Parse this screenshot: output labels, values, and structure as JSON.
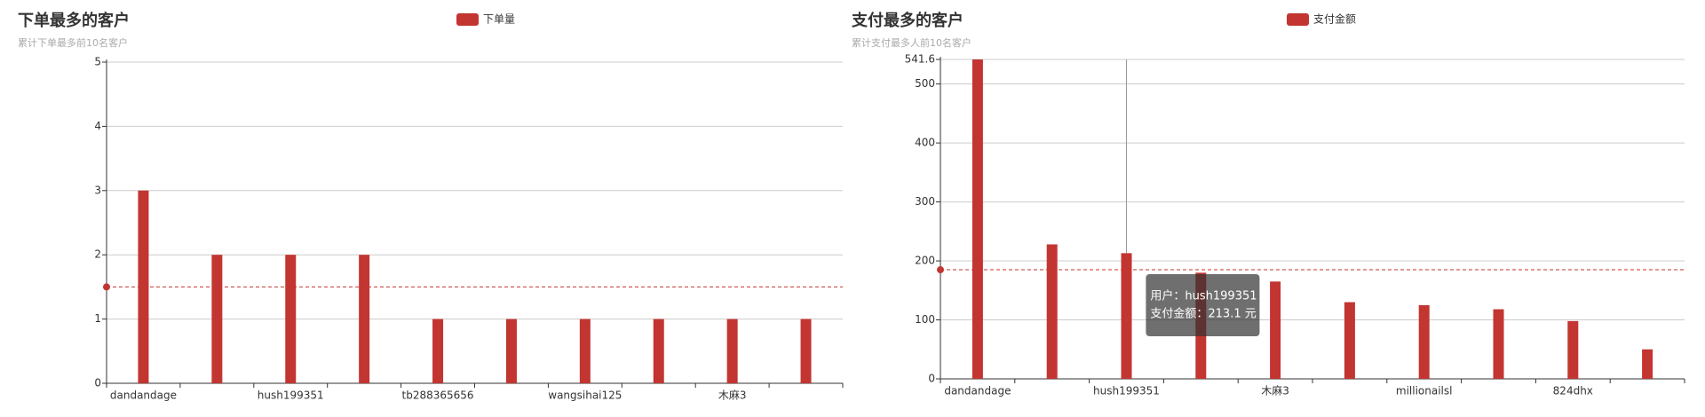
{
  "chart_data": [
    {
      "type": "bar",
      "title": "下单最多的客户",
      "subtitle": "累计下单最多前10名客户",
      "categories": [
        "dandandage",
        null,
        "hush199351",
        null,
        "tb288365656",
        null,
        "wangsihai125",
        null,
        "木麻3",
        null
      ],
      "series": [
        {
          "name": "下单量",
          "color": "#c23531",
          "values": [
            3,
            2,
            2,
            2,
            1,
            1,
            1,
            1,
            1,
            1
          ]
        }
      ],
      "ylim": [
        0,
        5
      ],
      "yticks": [
        0,
        1,
        2,
        3,
        4,
        5
      ],
      "grid": true,
      "mark_line": 1.5
    },
    {
      "type": "bar",
      "title": "支付最多的客户",
      "subtitle": "累计支付最多人前10名客户",
      "categories": [
        "dandandage",
        null,
        "hush199351",
        null,
        "木麻3",
        null,
        "millionailsl",
        null,
        "824dhx",
        null
      ],
      "series": [
        {
          "name": "支付金额",
          "color": "#c23531",
          "values": [
            541.6,
            228,
            213.1,
            180,
            165,
            130,
            125,
            118,
            98,
            50
          ]
        }
      ],
      "ylim": [
        0,
        541.6
      ],
      "yticks": [
        0,
        100,
        200,
        300,
        400,
        500,
        541.6
      ],
      "grid": true,
      "mark_line": 185,
      "tooltip": [
        "用户：hush199351",
        "支付金额：213.1 元"
      ]
    }
  ]
}
